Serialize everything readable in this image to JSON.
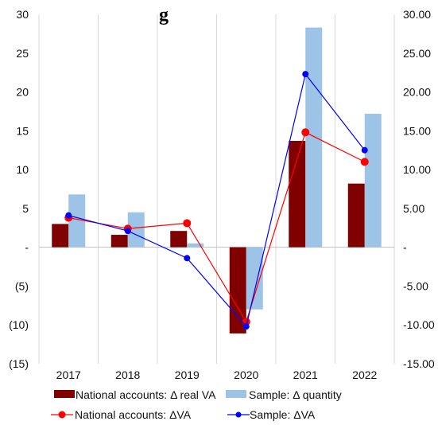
{
  "chart_data": {
    "type": "bar",
    "title": "g",
    "categories": [
      "2017",
      "2018",
      "2019",
      "2020",
      "2021",
      "2022"
    ],
    "left_axis": {
      "ylim": [
        -15,
        30
      ],
      "ticks": [
        30,
        25,
        20,
        15,
        10,
        5,
        0,
        -5,
        -10,
        -15
      ],
      "tick_labels": [
        "30",
        "25",
        "20",
        "15",
        "10",
        "5",
        "-",
        "(5)",
        "(10)",
        "(15)"
      ]
    },
    "right_axis": {
      "ylim": [
        -15,
        30
      ],
      "ticks": [
        30,
        25,
        20,
        15,
        10,
        5,
        0,
        -5,
        -10,
        -15
      ],
      "tick_labels": [
        "30.00",
        "25.00",
        "20.00",
        "15.00",
        "10.00",
        "5.00",
        "-",
        "-5.00",
        "-10.00",
        "-15.00"
      ]
    },
    "grid": "vertical",
    "legend_position": "bottom",
    "series": [
      {
        "name": "National accounts: Δ real VA",
        "kind": "bar",
        "axis": "left",
        "color": "#800000",
        "values": [
          3.0,
          1.6,
          2.1,
          -11.1,
          13.7,
          8.2
        ]
      },
      {
        "name": "Sample: Δ quantity",
        "kind": "bar",
        "axis": "left",
        "color": "#9DC3E6",
        "values": [
          6.8,
          4.5,
          0.5,
          -8.0,
          28.3,
          17.2
        ]
      },
      {
        "name": "National accounts: ΔVA",
        "kind": "line",
        "axis": "right",
        "color": "#FF0000",
        "values": [
          3.8,
          2.4,
          3.1,
          -9.6,
          14.8,
          11.0
        ]
      },
      {
        "name": "Sample: ΔVA",
        "kind": "line",
        "axis": "right",
        "color": "#0000FF",
        "values": [
          4.1,
          2.1,
          -1.4,
          -10.2,
          22.3,
          12.5
        ]
      }
    ]
  }
}
